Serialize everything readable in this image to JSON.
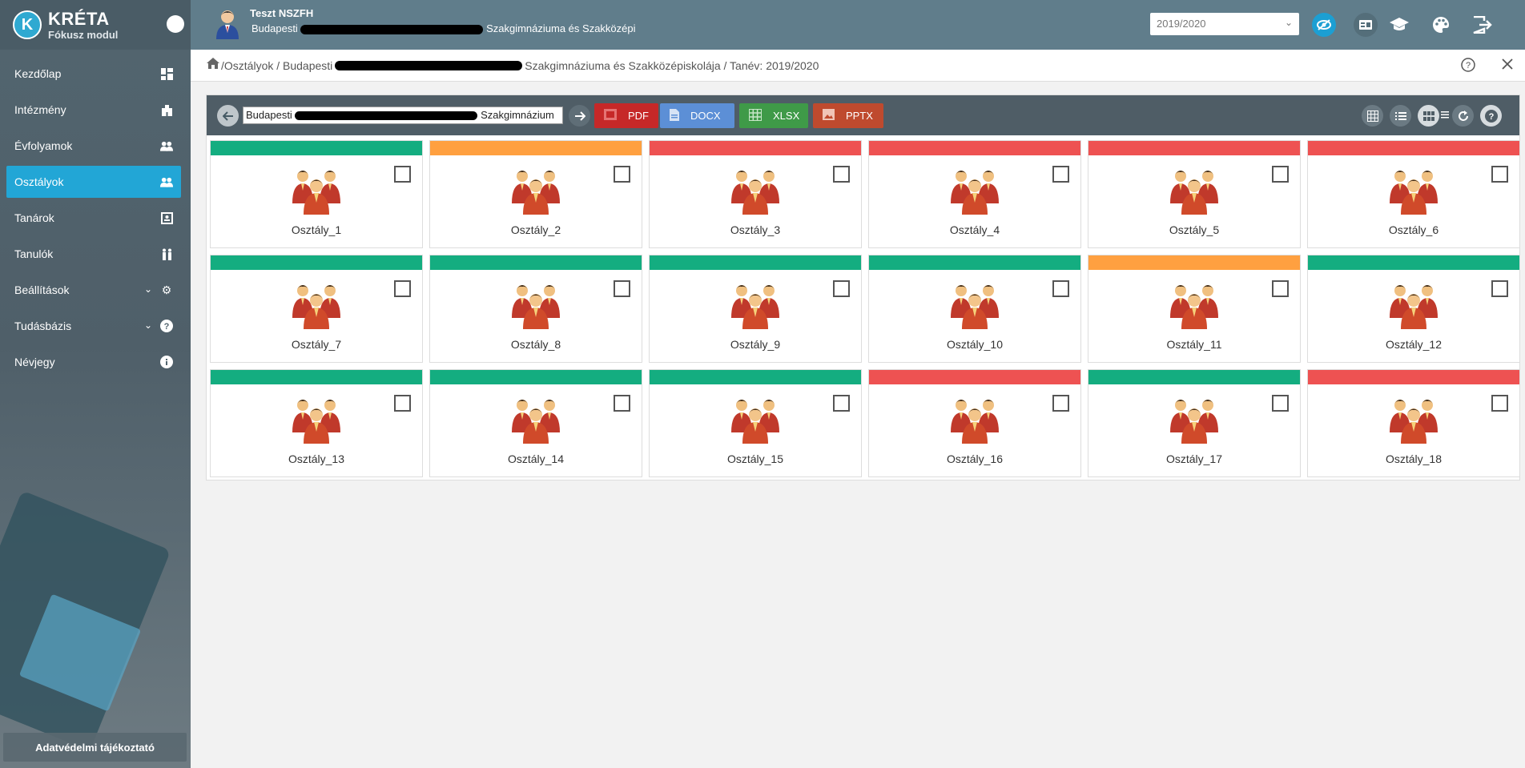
{
  "sidebar": {
    "logo_letter": "K",
    "app_name": "KRÉTA",
    "module": "Fókusz modul",
    "items": [
      {
        "label": "Kezdőlap",
        "icon": "dashboard-icon",
        "active": false
      },
      {
        "label": "Intézmény",
        "icon": "building-icon",
        "active": false
      },
      {
        "label": "Évfolyamok",
        "icon": "group-icon",
        "active": false
      },
      {
        "label": "Osztályok",
        "icon": "group-icon",
        "active": true
      },
      {
        "label": "Tanárok",
        "icon": "id-card-icon",
        "active": false
      },
      {
        "label": "Tanulók",
        "icon": "people-icon",
        "active": false
      },
      {
        "label": "Beállítások",
        "icon": "gear-icon",
        "active": false
      },
      {
        "label": "Tudásbázis",
        "icon": "help-icon",
        "active": false
      },
      {
        "label": "Névjegy",
        "icon": "info-icon",
        "active": false
      }
    ],
    "privacy_label": "Adatvédelmi tájékoztató"
  },
  "topbar": {
    "user_name": "Teszt NSZFH",
    "school_prefix": "Budapesti",
    "school_suffix": "Szakgimnáziuma és Szakközépi",
    "school_year": "2019/2020"
  },
  "breadcrumb": {
    "part1": "/Osztályok / Budapesti",
    "part2": "Szakgimnáziuma és Szakközépiskolája / Tanév: 2019/2020"
  },
  "toolbar": {
    "school_input_prefix": "Budapesti",
    "school_input_suffix": "Szakgimnázium",
    "exports": [
      {
        "label": "PDF",
        "color": "#c62828"
      },
      {
        "label": "DOCX",
        "color": "#5c8fd6"
      },
      {
        "label": "XLSX",
        "color": "#3f9a48"
      },
      {
        "label": "PPTX",
        "color": "#bf4a2e"
      }
    ]
  },
  "colors": {
    "green": "#14ad80",
    "orange": "#ffa040",
    "red": "#ee5252",
    "accent": "#22a6d6"
  },
  "classes": [
    {
      "name": "Osztály_1",
      "status": "green"
    },
    {
      "name": "Osztály_2",
      "status": "orange"
    },
    {
      "name": "Osztály_3",
      "status": "red"
    },
    {
      "name": "Osztály_4",
      "status": "red"
    },
    {
      "name": "Osztály_5",
      "status": "red"
    },
    {
      "name": "Osztály_6",
      "status": "red"
    },
    {
      "name": "Osztály_7",
      "status": "green"
    },
    {
      "name": "Osztály_8",
      "status": "green"
    },
    {
      "name": "Osztály_9",
      "status": "green"
    },
    {
      "name": "Osztály_10",
      "status": "green"
    },
    {
      "name": "Osztály_11",
      "status": "orange"
    },
    {
      "name": "Osztály_12",
      "status": "green"
    },
    {
      "name": "Osztály_13",
      "status": "green"
    },
    {
      "name": "Osztály_14",
      "status": "green"
    },
    {
      "name": "Osztály_15",
      "status": "green"
    },
    {
      "name": "Osztály_16",
      "status": "red"
    },
    {
      "name": "Osztály_17",
      "status": "green"
    },
    {
      "name": "Osztály_18",
      "status": "red"
    }
  ]
}
